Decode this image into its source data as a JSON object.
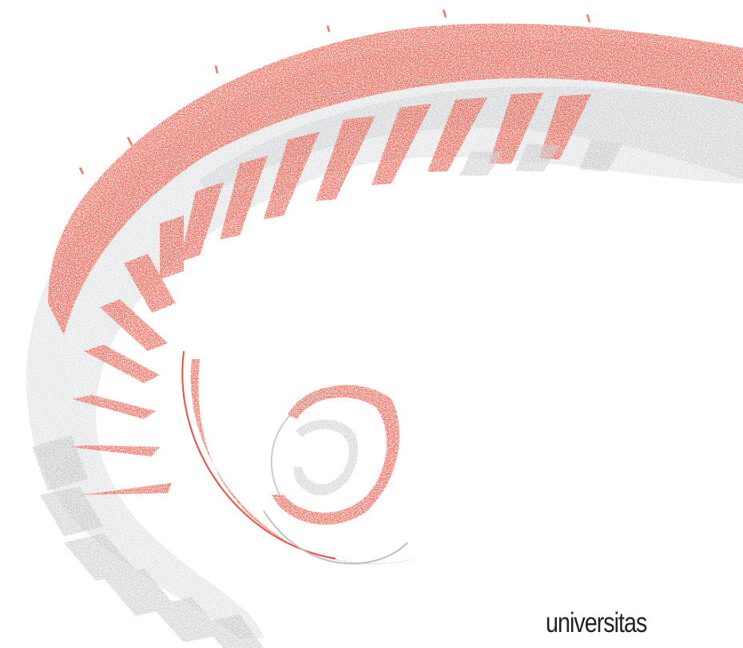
{
  "artwork": {
    "icon": "spiral-staircase-icon",
    "accent_color": "#f04e3b",
    "secondary_color": "#bdbfc2",
    "background_color": "#ffffff"
  },
  "wordmark": {
    "text": "universitas",
    "color": "#222222"
  }
}
